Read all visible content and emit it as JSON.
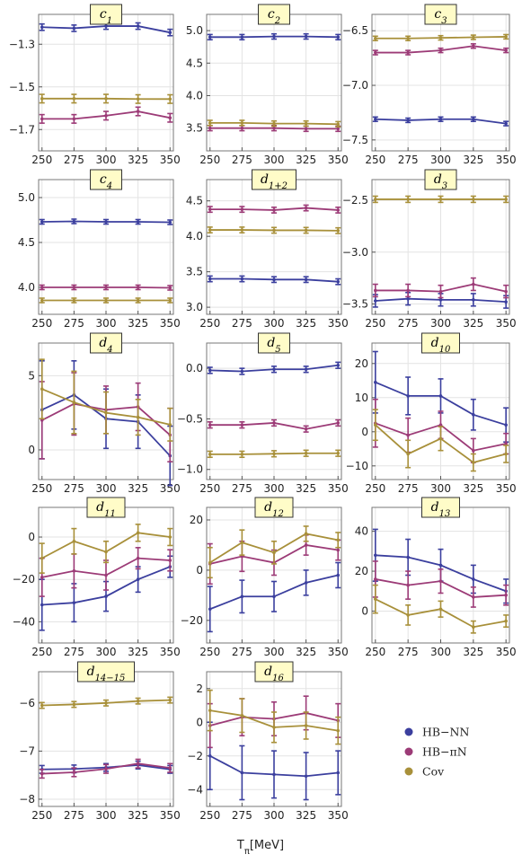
{
  "colors": {
    "HB-NN": "#3b3f9e",
    "HB-piN": "#9c3b77",
    "Cov": "#a8903a"
  },
  "xlabel_main": "T",
  "xlabel_sub": "π",
  "xlabel_unit": "[MeV]",
  "legend": [
    {
      "key": "HB-NN",
      "label": "HB−NN"
    },
    {
      "key": "HB-piN",
      "label": "HB−πN"
    },
    {
      "key": "Cov",
      "label": "Cov"
    }
  ],
  "chart_data": [
    {
      "type": "line",
      "title_main": "c",
      "title_sub": "1",
      "x": [
        250,
        275,
        300,
        325,
        350
      ],
      "xticks": [
        250,
        275,
        300,
        325,
        350
      ],
      "ylim": [
        -1.8,
        -1.16
      ],
      "yticks": [
        -1.3,
        -1.5,
        -1.7
      ],
      "ytick_labels": [
        "−1.3",
        "−1.5",
        "−1.7"
      ],
      "grid": true,
      "series": [
        {
          "name": "HB-NN",
          "y": [
            -1.22,
            -1.225,
            -1.215,
            -1.215,
            -1.245
          ],
          "err": [
            0.015,
            0.015,
            0.015,
            0.015,
            0.015
          ]
        },
        {
          "name": "HB-piN",
          "y": [
            -1.65,
            -1.65,
            -1.635,
            -1.615,
            -1.645
          ],
          "err": [
            0.02,
            0.02,
            0.02,
            0.02,
            0.02
          ]
        },
        {
          "name": "Cov",
          "y": [
            -1.555,
            -1.555,
            -1.555,
            -1.557,
            -1.557
          ],
          "err": [
            0.02,
            0.02,
            0.02,
            0.02,
            0.02
          ]
        }
      ]
    },
    {
      "type": "line",
      "title_main": "c",
      "title_sub": "2",
      "x": [
        250,
        275,
        300,
        325,
        350
      ],
      "xticks": [
        250,
        275,
        300,
        325,
        350
      ],
      "ylim": [
        3.15,
        5.25
      ],
      "yticks": [
        3.5,
        4.0,
        4.5,
        5.0
      ],
      "ytick_labels": [
        "3.5",
        "4.0",
        "4.5",
        "5.0"
      ],
      "grid": true,
      "series": [
        {
          "name": "HB-NN",
          "y": [
            4.9,
            4.9,
            4.91,
            4.91,
            4.9
          ],
          "err": [
            0.04,
            0.04,
            0.04,
            0.04,
            0.04
          ]
        },
        {
          "name": "HB-piN",
          "y": [
            3.5,
            3.5,
            3.5,
            3.49,
            3.49
          ],
          "err": [
            0.04,
            0.04,
            0.04,
            0.04,
            0.04
          ]
        },
        {
          "name": "Cov",
          "y": [
            3.58,
            3.58,
            3.57,
            3.57,
            3.56
          ],
          "err": [
            0.04,
            0.04,
            0.04,
            0.04,
            0.04
          ]
        }
      ]
    },
    {
      "type": "line",
      "title_main": "c",
      "title_sub": "3",
      "x": [
        250,
        275,
        300,
        325,
        350
      ],
      "xticks": [
        250,
        275,
        300,
        325,
        350
      ],
      "ylim": [
        -7.6,
        -6.35
      ],
      "yticks": [
        -6.5,
        -7.0,
        -7.5
      ],
      "ytick_labels": [
        "−6.5",
        "−7.0",
        "−7.5"
      ],
      "grid": true,
      "series": [
        {
          "name": "HB-NN",
          "y": [
            -7.31,
            -7.32,
            -7.31,
            -7.31,
            -7.35
          ],
          "err": [
            0.02,
            0.02,
            0.02,
            0.02,
            0.02
          ]
        },
        {
          "name": "HB-piN",
          "y": [
            -6.7,
            -6.7,
            -6.68,
            -6.64,
            -6.68
          ],
          "err": [
            0.02,
            0.02,
            0.02,
            0.02,
            0.02
          ]
        },
        {
          "name": "Cov",
          "y": [
            -6.57,
            -6.57,
            -6.565,
            -6.56,
            -6.555
          ],
          "err": [
            0.02,
            0.02,
            0.02,
            0.02,
            0.02
          ]
        }
      ]
    },
    {
      "type": "line",
      "title_main": "c",
      "title_sub": "4",
      "x": [
        250,
        275,
        300,
        325,
        350
      ],
      "xticks": [
        250,
        275,
        300,
        325,
        350
      ],
      "ylim": [
        3.7,
        5.2
      ],
      "yticks": [
        4.0,
        4.5,
        5.0
      ],
      "ytick_labels": [
        "4.0",
        "4.5",
        "5.0"
      ],
      "grid": true,
      "series": [
        {
          "name": "HB-NN",
          "y": [
            4.73,
            4.735,
            4.73,
            4.73,
            4.725
          ],
          "err": [
            0.025,
            0.025,
            0.025,
            0.025,
            0.025
          ]
        },
        {
          "name": "HB-piN",
          "y": [
            4.0,
            4.0,
            4.0,
            4.0,
            3.995
          ],
          "err": [
            0.025,
            0.025,
            0.025,
            0.025,
            0.025
          ]
        },
        {
          "name": "Cov",
          "y": [
            3.855,
            3.855,
            3.855,
            3.855,
            3.855
          ],
          "err": [
            0.025,
            0.025,
            0.025,
            0.025,
            0.025
          ]
        }
      ]
    },
    {
      "type": "line",
      "title_main": "d",
      "title_sub": "1+2",
      "x": [
        250,
        275,
        300,
        325,
        350
      ],
      "xticks": [
        250,
        275,
        300,
        325,
        350
      ],
      "ylim": [
        2.9,
        4.8
      ],
      "yticks": [
        3.0,
        3.5,
        4.0,
        4.5
      ],
      "ytick_labels": [
        "3.0",
        "3.5",
        "4.0",
        "4.5"
      ],
      "grid": true,
      "series": [
        {
          "name": "HB-NN",
          "y": [
            3.4,
            3.4,
            3.39,
            3.39,
            3.36
          ],
          "err": [
            0.04,
            0.04,
            0.04,
            0.04,
            0.04
          ]
        },
        {
          "name": "HB-piN",
          "y": [
            4.38,
            4.38,
            4.37,
            4.4,
            4.37
          ],
          "err": [
            0.04,
            0.04,
            0.04,
            0.04,
            0.04
          ]
        },
        {
          "name": "Cov",
          "y": [
            4.09,
            4.09,
            4.085,
            4.085,
            4.08
          ],
          "err": [
            0.04,
            0.04,
            0.04,
            0.04,
            0.04
          ]
        }
      ]
    },
    {
      "type": "line",
      "title_main": "d",
      "title_sub": "3",
      "x": [
        250,
        275,
        300,
        325,
        350
      ],
      "xticks": [
        250,
        275,
        300,
        325,
        350
      ],
      "ylim": [
        -3.6,
        -2.3
      ],
      "yticks": [
        -2.5,
        -3.0,
        -3.5
      ],
      "ytick_labels": [
        "−2.5",
        "−3.0",
        "−3.5"
      ],
      "grid": true,
      "series": [
        {
          "name": "HB-NN",
          "y": [
            -3.47,
            -3.45,
            -3.46,
            -3.46,
            -3.48
          ],
          "err": [
            0.06,
            0.06,
            0.06,
            0.06,
            0.06
          ]
        },
        {
          "name": "HB-piN",
          "y": [
            -3.37,
            -3.37,
            -3.38,
            -3.31,
            -3.38
          ],
          "err": [
            0.06,
            0.06,
            0.06,
            0.06,
            0.06
          ]
        },
        {
          "name": "Cov",
          "y": [
            -2.49,
            -2.49,
            -2.49,
            -2.49,
            -2.49
          ],
          "err": [
            0.03,
            0.03,
            0.03,
            0.03,
            0.03
          ]
        }
      ]
    },
    {
      "type": "line",
      "title_main": "d",
      "title_sub": "4",
      "x": [
        250,
        275,
        300,
        325,
        350
      ],
      "xticks": [
        250,
        275,
        300,
        325,
        350
      ],
      "ylim": [
        -2.0,
        7.2
      ],
      "yticks": [
        0,
        5
      ],
      "ytick_labels": [
        "0",
        "5"
      ],
      "grid": true,
      "series": [
        {
          "name": "HB-NN",
          "y": [
            2.7,
            3.7,
            2.1,
            1.9,
            -0.4
          ],
          "err": [
            3.3,
            2.3,
            2.0,
            1.8,
            2.0
          ]
        },
        {
          "name": "HB-piN",
          "y": [
            2.0,
            3.1,
            2.7,
            2.9,
            1.0
          ],
          "err": [
            2.6,
            2.1,
            1.6,
            1.6,
            1.8
          ]
        },
        {
          "name": "Cov",
          "y": [
            4.1,
            3.2,
            2.5,
            2.2,
            1.7
          ],
          "err": [
            2.0,
            2.1,
            1.4,
            1.2,
            1.1
          ]
        }
      ]
    },
    {
      "type": "line",
      "title_main": "d",
      "title_sub": "5",
      "x": [
        250,
        275,
        300,
        325,
        350
      ],
      "xticks": [
        250,
        275,
        300,
        325,
        350
      ],
      "ylim": [
        -1.1,
        0.25
      ],
      "yticks": [
        0.0,
        -0.5,
        -1.0
      ],
      "ytick_labels": [
        "0.0",
        "−0.5",
        "−1.0"
      ],
      "grid": true,
      "series": [
        {
          "name": "HB-NN",
          "y": [
            -0.02,
            -0.03,
            -0.01,
            -0.01,
            0.03
          ],
          "err": [
            0.03,
            0.03,
            0.03,
            0.03,
            0.03
          ]
        },
        {
          "name": "HB-piN",
          "y": [
            -0.56,
            -0.56,
            -0.54,
            -0.6,
            -0.54
          ],
          "err": [
            0.03,
            0.03,
            0.03,
            0.03,
            0.03
          ]
        },
        {
          "name": "Cov",
          "y": [
            -0.85,
            -0.85,
            -0.845,
            -0.84,
            -0.84
          ],
          "err": [
            0.03,
            0.03,
            0.03,
            0.03,
            0.03
          ]
        }
      ]
    },
    {
      "type": "line",
      "title_main": "d",
      "title_sub": "10",
      "x": [
        250,
        275,
        300,
        325,
        350
      ],
      "xticks": [
        250,
        275,
        300,
        325,
        350
      ],
      "ylim": [
        -14,
        26
      ],
      "yticks": [
        20,
        10,
        0,
        -10
      ],
      "ytick_labels": [
        "20",
        "10",
        "0",
        "−10"
      ],
      "grid": true,
      "series": [
        {
          "name": "HB-NN",
          "y": [
            14.5,
            10.5,
            10.5,
            5.0,
            2.0
          ],
          "err": [
            9.0,
            5.5,
            5.0,
            4.5,
            5.0
          ]
        },
        {
          "name": "HB-piN",
          "y": [
            2.5,
            -1.0,
            2.0,
            -5.5,
            -3.5
          ],
          "err": [
            7.0,
            5.0,
            4.0,
            3.5,
            3.0
          ]
        },
        {
          "name": "Cov",
          "y": [
            2.0,
            -6.5,
            -2.0,
            -9.0,
            -6.5
          ],
          "err": [
            4.5,
            4.0,
            3.5,
            2.5,
            2.5
          ]
        }
      ]
    },
    {
      "type": "line",
      "title_main": "d",
      "title_sub": "11",
      "x": [
        250,
        275,
        300,
        325,
        350
      ],
      "xticks": [
        250,
        275,
        300,
        325,
        350
      ],
      "ylim": [
        -50,
        14
      ],
      "yticks": [
        0,
        -20,
        -40
      ],
      "ytick_labels": [
        "0",
        "−20",
        "−40"
      ],
      "grid": true,
      "series": [
        {
          "name": "HB-NN",
          "y": [
            -32,
            -31,
            -28,
            -20,
            -14
          ],
          "err": [
            12,
            9,
            7,
            6,
            5
          ]
        },
        {
          "name": "HB-piN",
          "y": [
            -19,
            -16,
            -18,
            -10,
            -11
          ],
          "err": [
            9,
            8,
            7,
            5,
            5
          ]
        },
        {
          "name": "Cov",
          "y": [
            -10,
            -2,
            -7,
            2,
            0
          ],
          "err": [
            7,
            6,
            5,
            4,
            4
          ]
        }
      ]
    },
    {
      "type": "line",
      "title_main": "d",
      "title_sub": "12",
      "x": [
        250,
        275,
        300,
        325,
        350
      ],
      "xticks": [
        250,
        275,
        300,
        325,
        350
      ],
      "ylim": [
        -29,
        25
      ],
      "yticks": [
        20,
        0,
        -20
      ],
      "ytick_labels": [
        "20",
        "0",
        "−20"
      ],
      "grid": true,
      "series": [
        {
          "name": "HB-NN",
          "y": [
            -15.5,
            -10.5,
            -10.5,
            -5.0,
            -2.0
          ],
          "err": [
            9.0,
            6.5,
            6.0,
            5.0,
            5.0
          ]
        },
        {
          "name": "HB-piN",
          "y": [
            2.5,
            5.5,
            3.0,
            10.0,
            8.0
          ],
          "err": [
            8.0,
            6.0,
            5.0,
            4.0,
            4.0
          ]
        },
        {
          "name": "Cov",
          "y": [
            3.0,
            11.0,
            7.0,
            14.5,
            12.0
          ],
          "err": [
            6.0,
            5.0,
            4.5,
            3.0,
            3.0
          ]
        }
      ]
    },
    {
      "type": "line",
      "title_main": "d",
      "title_sub": "13",
      "x": [
        250,
        275,
        300,
        325,
        350
      ],
      "xticks": [
        250,
        275,
        300,
        325,
        350
      ],
      "ylim": [
        -16,
        52
      ],
      "yticks": [
        40,
        20,
        0
      ],
      "ytick_labels": [
        "40",
        "20",
        "0"
      ],
      "grid": true,
      "series": [
        {
          "name": "HB-NN",
          "y": [
            28,
            27,
            23,
            16,
            10
          ],
          "err": [
            13,
            9,
            8,
            7,
            6
          ]
        },
        {
          "name": "HB-piN",
          "y": [
            16,
            13,
            15,
            7,
            8
          ],
          "err": [
            9,
            7,
            6,
            5,
            5
          ]
        },
        {
          "name": "Cov",
          "y": [
            6,
            -2,
            1,
            -8,
            -5
          ],
          "err": [
            7,
            5,
            4,
            3,
            3
          ]
        }
      ]
    },
    {
      "type": "line",
      "title_main": "d",
      "title_sub": "14−15",
      "x": [
        250,
        275,
        300,
        325,
        350
      ],
      "xticks": [
        250,
        275,
        300,
        325,
        350
      ],
      "ylim": [
        -8.15,
        -5.35
      ],
      "yticks": [
        -6,
        -7,
        -8
      ],
      "ytick_labels": [
        "−6",
        "−7",
        "−8"
      ],
      "grid": true,
      "series": [
        {
          "name": "HB-NN",
          "y": [
            -7.38,
            -7.37,
            -7.34,
            -7.29,
            -7.38
          ],
          "err": [
            0.08,
            0.08,
            0.08,
            0.08,
            0.08
          ]
        },
        {
          "name": "HB-piN",
          "y": [
            -7.47,
            -7.44,
            -7.37,
            -7.26,
            -7.35
          ],
          "err": [
            0.09,
            0.09,
            0.09,
            0.09,
            0.09
          ]
        },
        {
          "name": "Cov",
          "y": [
            -6.05,
            -6.03,
            -6.0,
            -5.96,
            -5.94
          ],
          "err": [
            0.06,
            0.06,
            0.06,
            0.06,
            0.06
          ]
        }
      ]
    },
    {
      "type": "line",
      "title_main": "d",
      "title_sub": "16",
      "x": [
        250,
        275,
        300,
        325,
        350
      ],
      "xticks": [
        250,
        275,
        300,
        325,
        350
      ],
      "ylim": [
        -5.0,
        3.0
      ],
      "yticks": [
        2,
        0,
        -2,
        -4
      ],
      "ytick_labels": [
        "2",
        "0",
        "−2",
        "−4"
      ],
      "grid": true,
      "series": [
        {
          "name": "HB-NN",
          "y": [
            -2.0,
            -3.0,
            -3.1,
            -3.2,
            -3.0
          ],
          "err": [
            2.0,
            1.6,
            1.4,
            1.4,
            1.3
          ]
        },
        {
          "name": "HB-piN",
          "y": [
            -0.2,
            0.3,
            0.2,
            0.55,
            0.1
          ],
          "err": [
            1.3,
            1.1,
            1.0,
            1.0,
            1.0
          ]
        },
        {
          "name": "Cov",
          "y": [
            0.7,
            0.4,
            -0.3,
            -0.2,
            -0.5
          ],
          "err": [
            1.2,
            1.0,
            0.9,
            0.8,
            0.8
          ]
        }
      ]
    }
  ]
}
